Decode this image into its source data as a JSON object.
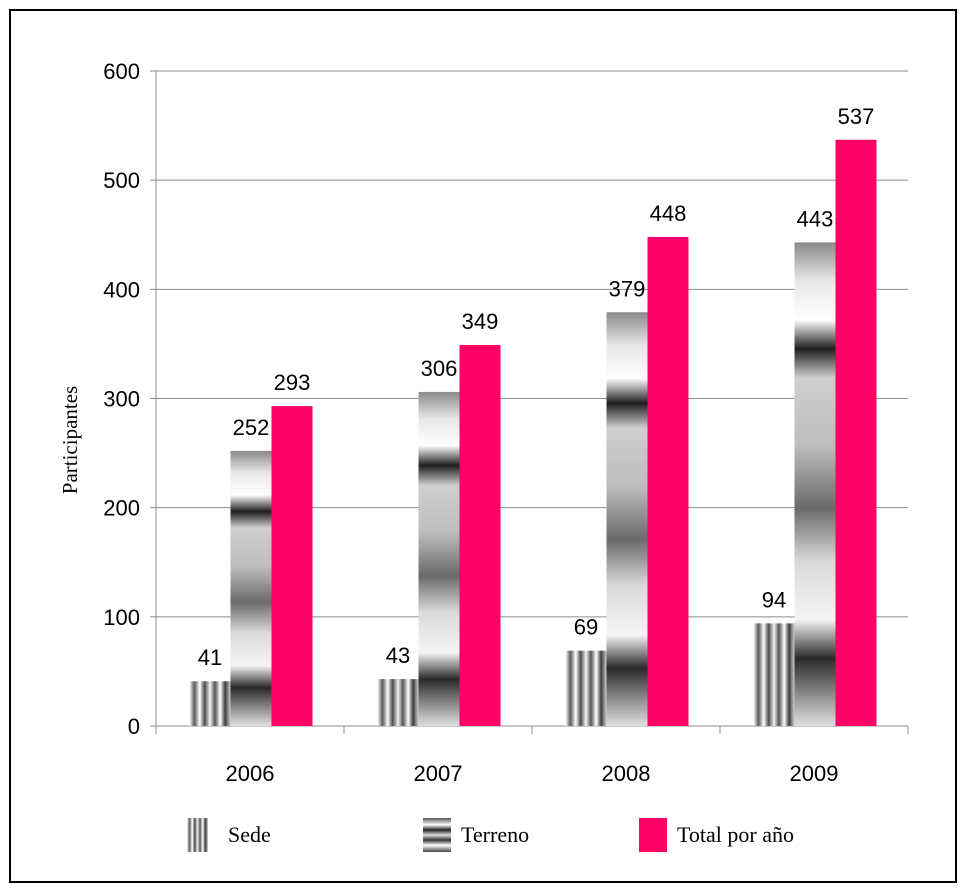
{
  "chart_data": {
    "type": "bar",
    "categories": [
      "2006",
      "2007",
      "2008",
      "2009"
    ],
    "series": [
      {
        "name": "Sede",
        "values": [
          41,
          43,
          69,
          94
        ],
        "color": "#a0a0a0"
      },
      {
        "name": "Terreno",
        "values": [
          252,
          306,
          379,
          443
        ],
        "color": "#808080"
      },
      {
        "name": "Total por año",
        "values": [
          293,
          349,
          448,
          537
        ],
        "color": "#ff0066"
      }
    ],
    "ylabel": "Participantes",
    "xlabel": "",
    "ylim": [
      0,
      600
    ],
    "yticks": [
      "0",
      "100",
      "200",
      "300",
      "400",
      "500",
      "600"
    ],
    "grid": true,
    "legend_position": "bottom"
  }
}
